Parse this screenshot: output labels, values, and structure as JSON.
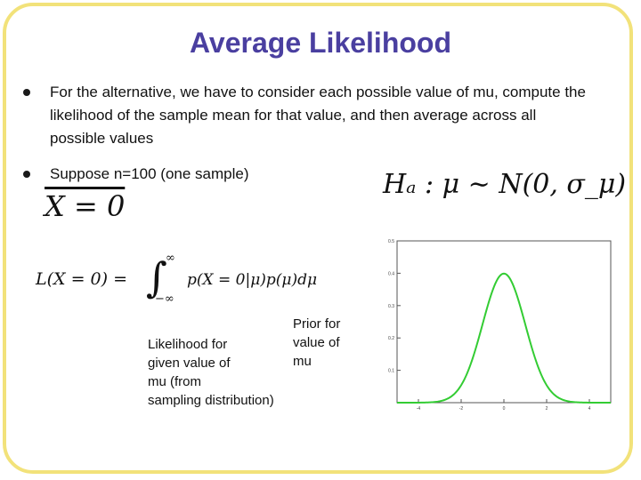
{
  "slide": {
    "title": "Average Likelihood",
    "bullets": [
      "For the alternative, we have to consider each possible value of mu, compute the likelihood of the sample mean for that value, and then average across all possible values",
      "Suppose n=100 (one sample)"
    ]
  },
  "equations": {
    "xbar": "X = 0",
    "integral_lhs": "L(X = 0) =",
    "integral_upper": "∞",
    "integral_lower": "−∞",
    "integrand": "p(X = 0|μ)p(μ)dμ",
    "hypothesis": "Hₐ : μ ∼ N(0, σ_μ)"
  },
  "annotations": {
    "prior_line1": "Prior for",
    "prior_line2": "value of",
    "prior_line3": "mu",
    "like_line1": "Likelihood for",
    "like_line2": "given value of",
    "like_line3": "mu (from",
    "like_line4": "sampling distribution)"
  },
  "chart_data": {
    "type": "line",
    "series": [
      {
        "curve": "normal",
        "mean": 0,
        "sd": 1,
        "color": "#33cc33"
      }
    ],
    "xlim": [
      -5,
      5
    ],
    "ylim": [
      0,
      0.5
    ],
    "x_ticks": [
      "-4",
      "-2",
      "0",
      "2",
      "4"
    ],
    "y_ticks": [
      "0.1",
      "0.2",
      "0.3",
      "0.4",
      "0.5"
    ],
    "grid": false
  }
}
